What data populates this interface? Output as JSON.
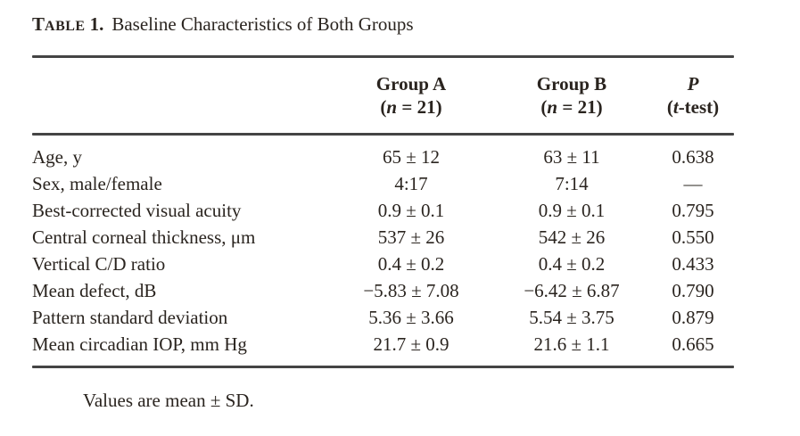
{
  "caption": {
    "label_cap": "T",
    "label_small": "ABLE",
    "number": "1.",
    "text": "Baseline Characteristics of Both Groups"
  },
  "header": {
    "group_a": {
      "name": "Group A",
      "sub_open": "(",
      "sub_var": "n",
      "sub_rest": " = 21)"
    },
    "group_b": {
      "name": "Group B",
      "sub_open": "(",
      "sub_var": "n",
      "sub_rest": " = 21)"
    },
    "p": {
      "name": "P",
      "sub_open": "(",
      "sub_var": "t",
      "sub_rest": "-test)"
    }
  },
  "rows": [
    {
      "label": "Age, y",
      "group_a": "65 ± 12",
      "group_b": "63 ± 11",
      "p": "0.638"
    },
    {
      "label": "Sex, male/female",
      "group_a": "4:17",
      "group_b": "7:14",
      "p": "—"
    },
    {
      "label": "Best-corrected visual acuity",
      "group_a": "0.9 ± 0.1",
      "group_b": "0.9 ± 0.1",
      "p": "0.795"
    },
    {
      "label": "Central corneal thickness, μm",
      "group_a": "537 ± 26",
      "group_b": "542 ± 26",
      "p": "0.550"
    },
    {
      "label": "Vertical C/D ratio",
      "group_a": "0.4 ± 0.2",
      "group_b": "0.4 ± 0.2",
      "p": "0.433"
    },
    {
      "label": "Mean defect, dB",
      "group_a": "−5.83 ± 7.08",
      "group_b": "−6.42 ± 6.87",
      "p": "0.790"
    },
    {
      "label": "Pattern standard deviation",
      "group_a": "5.36 ± 3.66",
      "group_b": "5.54 ± 3.75",
      "p": "0.879"
    },
    {
      "label": "Mean circadian IOP, mm Hg",
      "group_a": "21.7 ± 0.9",
      "group_b": "21.6 ± 1.1",
      "p": "0.665"
    }
  ],
  "footnote": "Values are mean ± SD."
}
